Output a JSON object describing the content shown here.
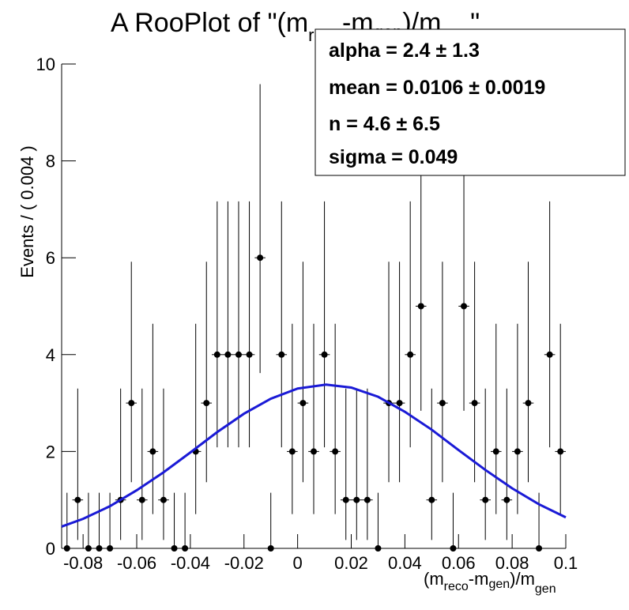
{
  "chart_data": {
    "type": "errorbar",
    "title_parts": [
      "A RooPlot of \"(m",
      "reco",
      "-m",
      "gen",
      ")/m",
      "gen",
      "\""
    ],
    "x_label_parts": [
      "(m",
      "reco",
      "-m",
      "gen",
      ")/m",
      "gen"
    ],
    "y_label": "Events / ( 0.004 )",
    "stats": [
      "alpha =  2.4 ± 1.3",
      "mean =  0.0106 ± 0.0019",
      "n =  4.6 ± 6.5",
      "sigma =  0.049"
    ],
    "x": [
      -0.086,
      -0.082,
      -0.078,
      -0.074,
      -0.07,
      -0.066,
      -0.062,
      -0.058,
      -0.054,
      -0.05,
      -0.046,
      -0.042,
      -0.038,
      -0.034,
      -0.03,
      -0.026,
      -0.022,
      -0.018,
      -0.014,
      -0.01,
      -0.006,
      -0.002,
      0.002,
      0.006,
      0.01,
      0.014,
      0.018,
      0.022,
      0.026,
      0.03,
      0.034,
      0.038,
      0.042,
      0.046,
      0.05,
      0.054,
      0.058,
      0.062,
      0.066,
      0.07,
      0.074,
      0.078,
      0.082,
      0.086,
      0.09,
      0.094,
      0.098
    ],
    "values": [
      0,
      1,
      0,
      0,
      0,
      1,
      3,
      1,
      2,
      1,
      0,
      0,
      2,
      3,
      4,
      4,
      4,
      4,
      6,
      0,
      4,
      2,
      3,
      2,
      4,
      2,
      1,
      1,
      1,
      0,
      3,
      3,
      4,
      5,
      1,
      3,
      0,
      5,
      3,
      1,
      2,
      1,
      2,
      3,
      0,
      4,
      2
    ],
    "errors_low": [
      0,
      0.827,
      0,
      0,
      0,
      0.827,
      1.633,
      0.827,
      1.292,
      0.827,
      0,
      0,
      1.292,
      1.633,
      1.914,
      1.914,
      1.914,
      1.914,
      2.38,
      0,
      1.914,
      1.292,
      1.633,
      1.292,
      1.914,
      1.292,
      0.827,
      0.827,
      0.827,
      0,
      1.633,
      1.633,
      1.914,
      2.16,
      0.827,
      1.633,
      0,
      2.16,
      1.633,
      0.827,
      1.292,
      0.827,
      1.292,
      1.633,
      0,
      1.914,
      1.292
    ],
    "errors_high": [
      1.148,
      2.3,
      1.148,
      1.148,
      1.148,
      2.3,
      2.918,
      2.3,
      2.638,
      2.3,
      1.148,
      1.148,
      2.638,
      2.918,
      3.163,
      3.163,
      3.163,
      3.163,
      3.584,
      1.148,
      3.163,
      2.638,
      2.918,
      2.638,
      3.163,
      2.638,
      2.3,
      2.3,
      2.3,
      1.148,
      2.918,
      2.918,
      3.163,
      3.382,
      2.3,
      2.918,
      1.148,
      3.382,
      2.918,
      2.3,
      2.638,
      2.3,
      2.638,
      2.918,
      1.148,
      3.163,
      2.638
    ],
    "color": "#000000",
    "fit": {
      "x": [
        -0.088,
        -0.08,
        -0.07,
        -0.06,
        -0.05,
        -0.04,
        -0.03,
        -0.02,
        -0.01,
        0,
        0.0106,
        0.02,
        0.03,
        0.04,
        0.05,
        0.06,
        0.07,
        0.08,
        0.09,
        0.1
      ],
      "values": [
        0.45,
        0.61,
        0.87,
        1.2,
        1.57,
        1.98,
        2.4,
        2.78,
        3.09,
        3.3,
        3.38,
        3.32,
        3.13,
        2.82,
        2.45,
        2.03,
        1.62,
        1.24,
        0.91,
        0.64
      ],
      "color": "#1a1ad6"
    },
    "xlim": [
      -0.088,
      0.1
    ],
    "ylim": [
      0,
      10
    ],
    "xticks": [
      -0.08,
      -0.06,
      -0.04,
      -0.02,
      0,
      0.02,
      0.04,
      0.06,
      0.08,
      0.1
    ],
    "yticks": [
      0,
      2,
      4,
      6,
      8,
      10
    ]
  }
}
